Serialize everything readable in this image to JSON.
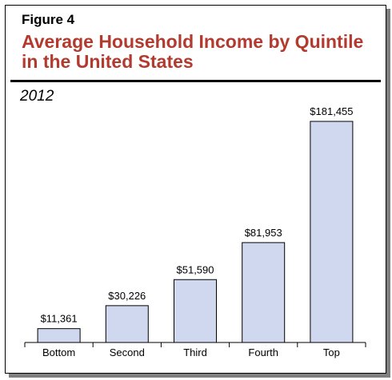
{
  "figure_label": "Figure 4",
  "title": "Average Household Income by Quintile in the United States",
  "subtitle": "2012",
  "chart_data": {
    "type": "bar",
    "categories": [
      "Bottom",
      "Second",
      "Third",
      "Fourth",
      "Top"
    ],
    "values": [
      11361,
      30226,
      51590,
      81953,
      181455
    ],
    "value_labels": [
      "$11,361",
      "$30,226",
      "$51,590",
      "$81,953",
      "$181,455"
    ],
    "ylim": [
      0,
      190000
    ],
    "grid": false,
    "bar_color": "#cfd8ef",
    "bar_edge_color": "#000000",
    "title_color": "#b23a2e"
  }
}
